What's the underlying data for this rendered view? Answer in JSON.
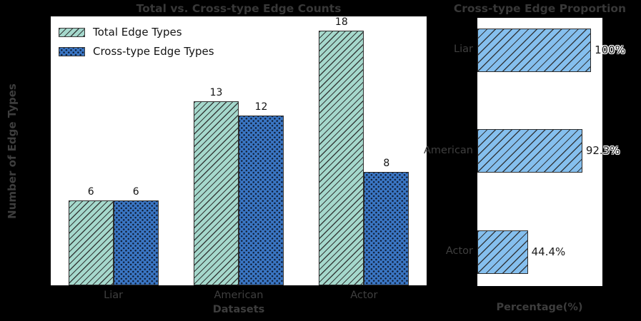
{
  "figure": {
    "background": "#000000",
    "panel_background": "#ffffff",
    "text_gray": "#3d3d3d",
    "text_black": "#141414",
    "halo": "#ffffff"
  },
  "chart_data": [
    {
      "type": "bar",
      "title": "Total vs. Cross-type Edge Counts",
      "xlabel": "Datasets",
      "ylabel": "Number of Edge Types",
      "categories": [
        "Liar",
        "American",
        "Actor"
      ],
      "series": [
        {
          "name": "Total Edge Types",
          "values": [
            6,
            13,
            18
          ],
          "color": "#a5d8cc",
          "hatch": "/"
        },
        {
          "name": "Cross-type Edge Types",
          "values": [
            6,
            12,
            8
          ],
          "color": "#3a76c4",
          "hatch": "."
        }
      ],
      "ylim": [
        0,
        19
      ],
      "grid": false,
      "legend_position": "upper left"
    },
    {
      "type": "bar",
      "orientation": "horizontal",
      "title": "Cross-type Edge Proportion",
      "xlabel": "Percentage(%)",
      "categories": [
        "Liar",
        "American",
        "Actor"
      ],
      "values": [
        100,
        92.3,
        44.4
      ],
      "value_labels": [
        "100%",
        "92.3%",
        "44.4%"
      ],
      "bar_color": "#85bfee",
      "hatch": "/",
      "xlim": [
        0,
        110
      ],
      "grid": false
    }
  ]
}
